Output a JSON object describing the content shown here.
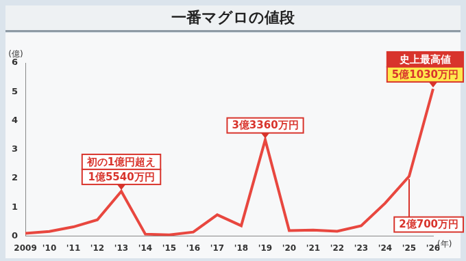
{
  "chart_data": {
    "type": "line",
    "title": "一番マグロの値段",
    "y_label": "(億)",
    "x_label": "(年)",
    "categories": [
      "2009",
      "'10",
      "'11",
      "'12",
      "'13",
      "'14",
      "'15",
      "'16",
      "'17",
      "'18",
      "'19",
      "'20",
      "'21",
      "'22",
      "'23",
      "'24",
      "'25",
      "'26"
    ],
    "values": [
      0.096,
      0.16,
      0.32,
      0.565,
      1.554,
      0.07,
      0.045,
      0.14,
      0.74,
      0.36,
      3.336,
      0.193,
      0.208,
      0.169,
      0.36,
      1.14,
      2.07,
      5.103
    ],
    "color": "#e8473f",
    "ylim": [
      0,
      6
    ],
    "yticks": [
      0,
      1,
      2,
      3,
      4,
      5,
      6
    ],
    "grid": false,
    "annotations": [
      {
        "category": "'13",
        "text": [
          "初の1億円超え",
          "1億5540万円"
        ]
      },
      {
        "category": "'19",
        "text": [
          "3億3360万円"
        ]
      },
      {
        "category": "'26",
        "text": [
          "史上最高値",
          "5億1030万円"
        ]
      },
      {
        "category": "'25",
        "text": [
          "2億700万円"
        ]
      }
    ]
  }
}
